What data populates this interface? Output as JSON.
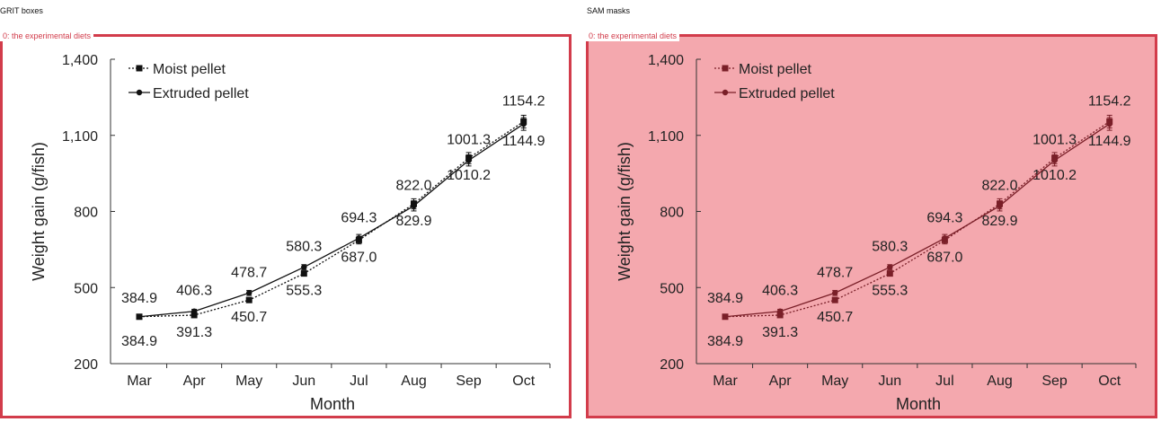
{
  "panels": {
    "left_title": "GRIT boxes",
    "right_title": "SAM masks",
    "box_label": "0: the experimental diets"
  },
  "chart_data": {
    "type": "line",
    "categories": [
      "Mar",
      "Apr",
      "May",
      "Jun",
      "Jul",
      "Aug",
      "Sep",
      "Oct"
    ],
    "xlabel": "Month",
    "ylabel": "Weight gain (g/fish)",
    "ylim": [
      200,
      1400
    ],
    "yticks": [
      200,
      500,
      800,
      1100,
      1400
    ],
    "ytick_labels": [
      "200",
      "500",
      "800",
      "1,100",
      "1,400"
    ],
    "legend_position": "top-left",
    "series": [
      {
        "name": "Moist pellet",
        "style": "dotted",
        "values": [
          384.9,
          391.3,
          450.7,
          555.3,
          687.0,
          829.9,
          1010.2,
          1154.2
        ],
        "labels": [
          "384.9",
          "391.3",
          "450.7",
          "555.3",
          "687.0",
          "829.9",
          "1010.2",
          "1154.2"
        ],
        "label_position": [
          "below",
          "below",
          "below",
          "below",
          "below",
          "below",
          "below",
          "above"
        ],
        "errors": [
          0,
          8,
          10,
          10,
          15,
          20,
          22,
          25
        ]
      },
      {
        "name": "Extruded pellet",
        "style": "solid",
        "values": [
          384.9,
          406.3,
          478.7,
          580.3,
          694.3,
          822.0,
          1001.3,
          1144.9
        ],
        "labels": [
          "384.9",
          "406.3",
          "478.7",
          "580.3",
          "694.3",
          "822.0",
          "1001.3",
          "1144.9"
        ],
        "label_position": [
          "above",
          "above",
          "above",
          "above",
          "above",
          "above",
          "above",
          "below"
        ],
        "errors": [
          0,
          8,
          10,
          10,
          15,
          20,
          22,
          25
        ]
      }
    ]
  },
  "colors": {
    "box_border": "#d23c4b",
    "mask_fill": "#ec6e78",
    "line": "#111111",
    "mask_line": "#7a1f28"
  }
}
